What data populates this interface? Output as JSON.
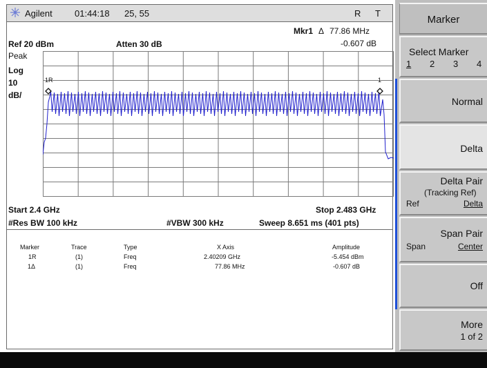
{
  "header": {
    "brand": "Agilent",
    "time": "01:44:18",
    "date_code": "25,  55",
    "mode_r": "R",
    "mode_t": "T"
  },
  "marker_readout": {
    "label": "Mkr1",
    "delta": "Δ",
    "freq": "77.86 MHz",
    "amplitude": "-0.607 dB"
  },
  "settings": {
    "ref_level": "Ref 20 dBm",
    "atten": "Atten 30 dB",
    "detector": "Peak",
    "scale_type": "Log",
    "scale_value": "10",
    "scale_unit": "dB/"
  },
  "markers_on_trace": {
    "ref_label": "1R",
    "delta_label": "1"
  },
  "sweep": {
    "start": "Start 2.4 GHz",
    "stop": "Stop 2.483 GHz",
    "res_bw": "#Res BW 100 kHz",
    "vbw": "#VBW 300 kHz",
    "sweep_time": "Sweep 8.651 ms (401 pts)"
  },
  "marker_table": {
    "columns": [
      "Marker",
      "Trace",
      "Type",
      "X Axis",
      "Amplitude"
    ],
    "rows": [
      [
        "1R",
        "(1)",
        "Freq",
        "2.40209 GHz",
        "-5.454 dBm"
      ],
      [
        "1Δ",
        "(1)",
        "Freq",
        "77.86 MHz",
        "-0.607 dB"
      ]
    ]
  },
  "softkeys": {
    "title": "Marker",
    "select_label": "Select Marker",
    "select_options": [
      "1",
      "2",
      "3",
      "4"
    ],
    "normal": "Normal",
    "delta": "Delta",
    "delta_pair": "Delta Pair",
    "delta_pair_sub": "(Tracking Ref)",
    "delta_pair_left": "Ref",
    "delta_pair_right": "Delta",
    "span_pair": "Span Pair",
    "span_pair_left": "Span",
    "span_pair_right": "Center",
    "off": "Off",
    "more": "More",
    "more_page": "1 of 2"
  },
  "colors": {
    "trace": "#1f1fcc",
    "accent": "#1e4fd8",
    "grid": "#7a7a7a"
  },
  "icons": {
    "brand_logo": "agilent-spark-icon",
    "marker_diamond": "marker-diamond-icon"
  }
}
